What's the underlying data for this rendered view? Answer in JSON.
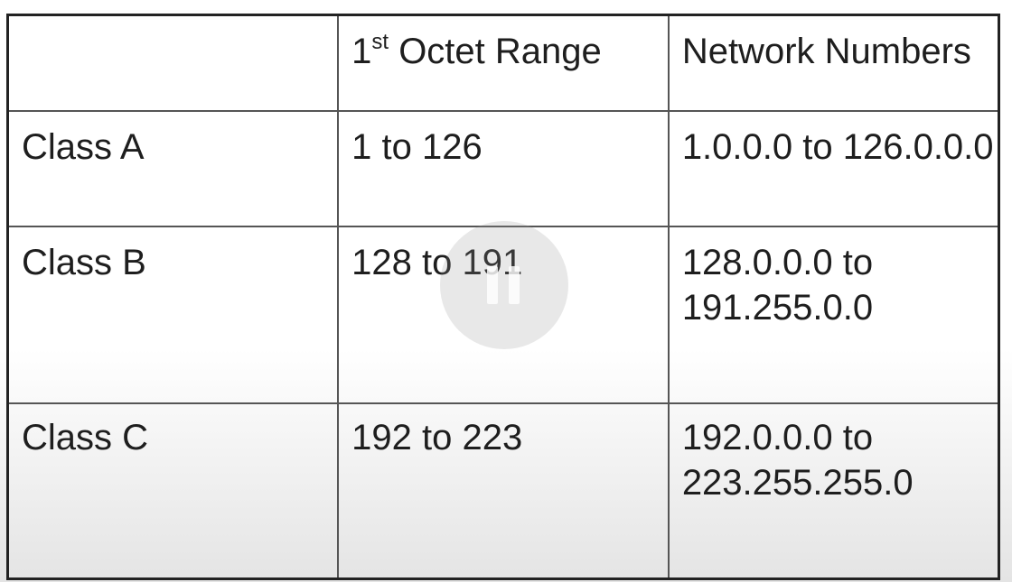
{
  "table": {
    "header": {
      "col0": "",
      "col1_prefix": "1",
      "col1_sup": "st",
      "col1_rest": " Octet Range",
      "col2": "Network Numbers"
    },
    "rows": [
      {
        "class": "Class A",
        "range": "1 to 126",
        "network_line1": "1.0.0.0 to 126.0.0.0",
        "network_line2": ""
      },
      {
        "class": "Class B",
        "range": "128 to 191",
        "network_line1": "128.0.0.0 to",
        "network_line2": "191.255.0.0"
      },
      {
        "class": "Class C",
        "range": "192 to 223",
        "network_line1": "192.0.0.0 to",
        "network_line2": "223.255.255.0"
      }
    ]
  },
  "overlay": {
    "icon": "pause-icon"
  },
  "colors": {
    "text": "#1e1e1e",
    "border": "#222222",
    "background": "#ffffff"
  }
}
